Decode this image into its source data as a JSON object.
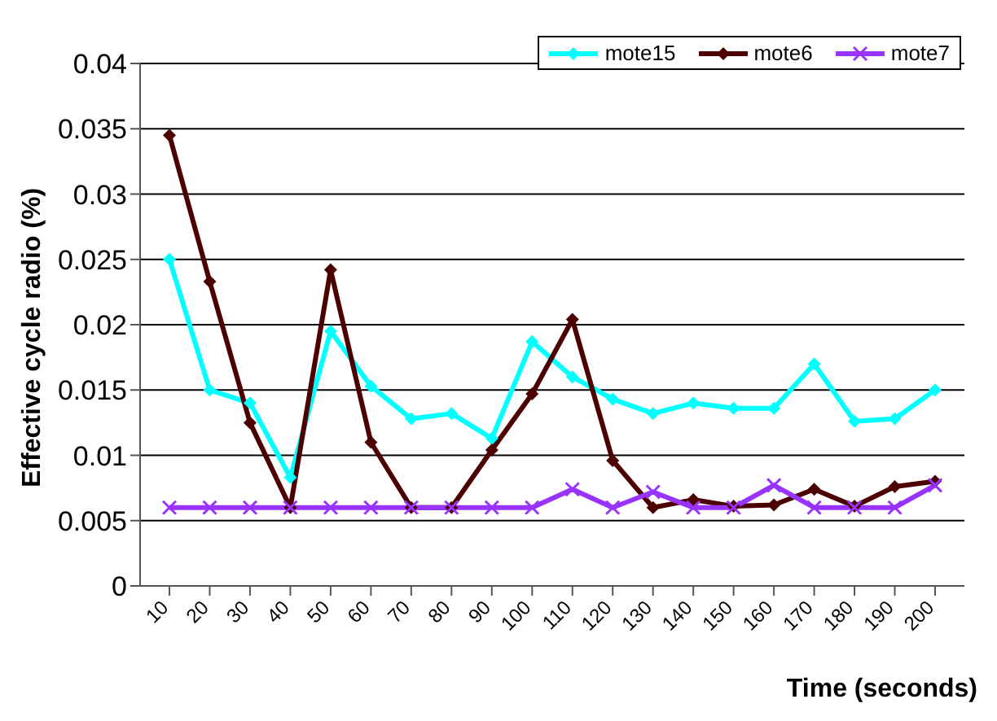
{
  "chart_data": {
    "type": "line",
    "xlabel": "Time (seconds)",
    "ylabel": "Effective cycle radio (%)",
    "categories": [
      "10",
      "20",
      "30",
      "40",
      "50",
      "60",
      "70",
      "80",
      "90",
      "100",
      "110",
      "120",
      "130",
      "140",
      "150",
      "160",
      "170",
      "180",
      "190",
      "200"
    ],
    "series": [
      {
        "name": "mote15",
        "color": "#00ffff",
        "marker": "diamond",
        "values": [
          0.025,
          0.015,
          0.014,
          0.0083,
          0.0195,
          0.0153,
          0.0128,
          0.0132,
          0.0113,
          0.0187,
          0.016,
          0.0143,
          0.0132,
          0.014,
          0.0136,
          0.0136,
          0.017,
          0.0126,
          0.0128,
          0.015
        ]
      },
      {
        "name": "mote6",
        "color": "#4d0000",
        "marker": "diamond",
        "values": [
          0.0345,
          0.0233,
          0.0125,
          0.006,
          0.0242,
          0.011,
          0.006,
          0.006,
          0.0104,
          0.0147,
          0.0204,
          0.0096,
          0.006,
          0.0066,
          0.0061,
          0.0062,
          0.0074,
          0.0061,
          0.0076,
          0.008
        ]
      },
      {
        "name": "mote7",
        "color": "#9933ff",
        "marker": "cross",
        "values": [
          0.006,
          0.006,
          0.006,
          0.006,
          0.006,
          0.006,
          0.006,
          0.006,
          0.006,
          0.006,
          0.0074,
          0.006,
          0.0072,
          0.006,
          0.006,
          0.0077,
          0.006,
          0.006,
          0.006,
          0.0077
        ]
      }
    ],
    "ylim": [
      0,
      0.04
    ],
    "yticks": [
      0,
      0.005,
      0.01,
      0.015,
      0.02,
      0.025,
      0.03,
      0.035,
      0.04
    ],
    "grid": "y",
    "legend": "top right",
    "line_style": "solid"
  }
}
